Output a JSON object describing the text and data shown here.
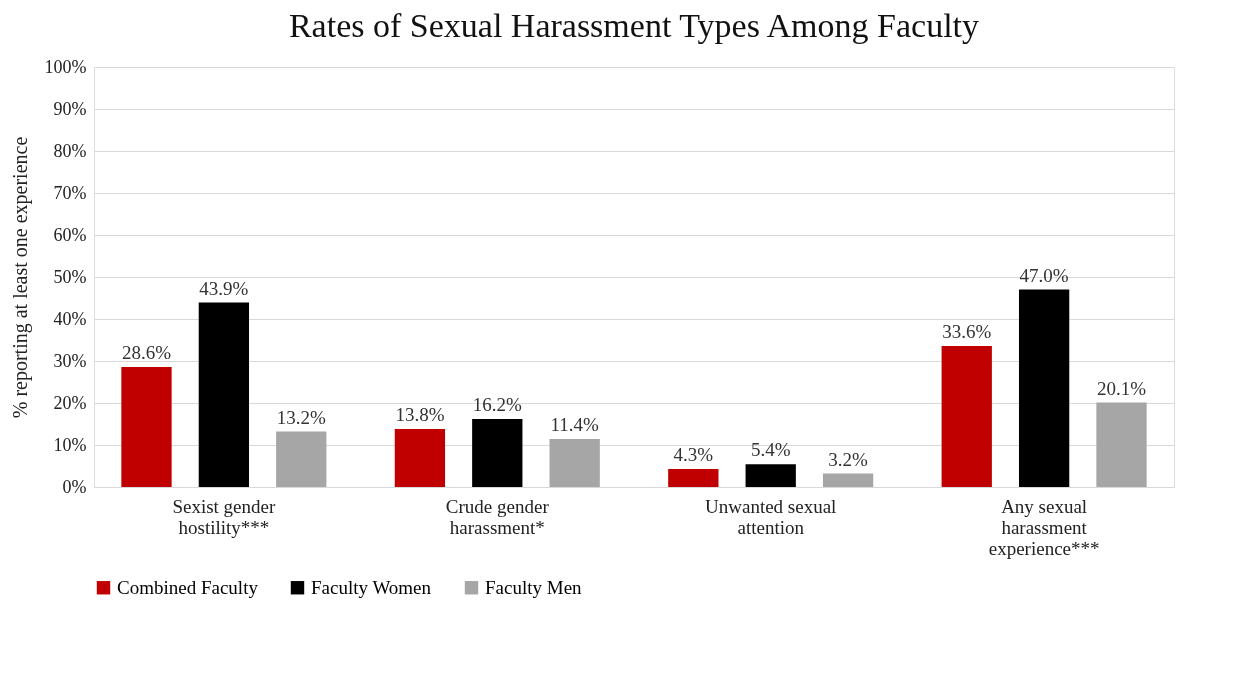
{
  "chart_data": {
    "type": "bar",
    "title": "Rates of Sexual Harassment Types Among Faculty",
    "ylabel": "% reporting at least one experience",
    "categories": [
      "Sexist gender hostility***",
      "Crude gender harassment*",
      "Unwanted sexual attention",
      "Any sexual harassment experience***"
    ],
    "series": [
      {
        "name": "Combined Faculty",
        "color": "#c00000",
        "values": [
          28.6,
          13.8,
          4.3,
          33.6
        ],
        "value_labels": [
          "28.6%",
          "13.8%",
          "4.3%",
          "33.6%"
        ]
      },
      {
        "name": "Faculty Women",
        "color": "#000000",
        "values": [
          43.9,
          16.2,
          5.4,
          47.0
        ],
        "value_labels": [
          "43.9%",
          "16.2%",
          "5.4%",
          "47.0%"
        ]
      },
      {
        "name": "Faculty Men",
        "color": "#a6a6a6",
        "values": [
          13.2,
          11.4,
          3.2,
          20.1
        ],
        "value_labels": [
          "13.2%",
          "11.4%",
          "3.2%",
          "20.1%"
        ]
      }
    ],
    "ylim": [
      0,
      100
    ],
    "yticks": [
      {
        "value": 0,
        "label": "0%"
      },
      {
        "value": 10,
        "label": "10%"
      },
      {
        "value": 20,
        "label": "20%"
      },
      {
        "value": 30,
        "label": "30%"
      },
      {
        "value": 40,
        "label": "40%"
      },
      {
        "value": 50,
        "label": "50%"
      },
      {
        "value": 60,
        "label": "60%"
      },
      {
        "value": 70,
        "label": "70%"
      },
      {
        "value": 80,
        "label": "80%"
      },
      {
        "value": 90,
        "label": "90%"
      },
      {
        "value": 100,
        "label": "100%"
      }
    ],
    "grid": "y",
    "legend": "bottom"
  }
}
